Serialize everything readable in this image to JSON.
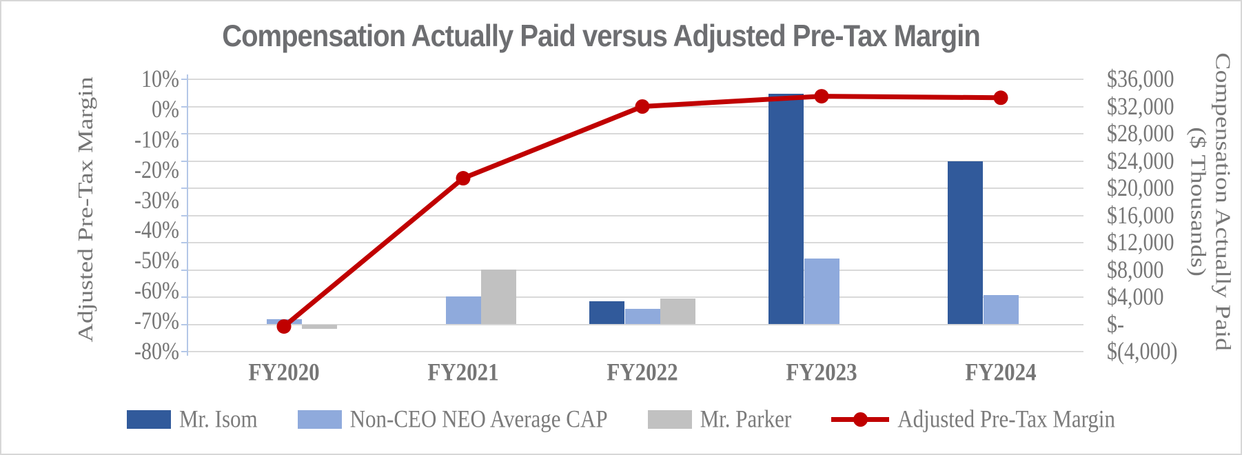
{
  "window": {
    "background_color": "#FFFFFF",
    "border_color": "#D7D7D7"
  },
  "chart_data": {
    "type": "combo-bar-line",
    "title": "Compensation Actually Paid versus Adjusted Pre-Tax Margin",
    "categories": [
      "FY2020",
      "FY2021",
      "FY2022",
      "FY2023",
      "FY2024"
    ],
    "bar_series": [
      {
        "name": "Mr. Isom",
        "color": "#315A9B",
        "axis": "right",
        "values_thousands": [
          null,
          null,
          3400,
          33900,
          23900
        ]
      },
      {
        "name": "Non-CEO NEO Average CAP",
        "color": "#8FAADC",
        "axis": "right",
        "values_thousands": [
          800,
          4100,
          2300,
          9700,
          4300
        ]
      },
      {
        "name": "Mr. Parker",
        "color": "#C1C1C1",
        "axis": "right",
        "values_thousands": [
          -700,
          8100,
          3800,
          null,
          null
        ]
      }
    ],
    "line_series": {
      "name": "Adjusted Pre-Tax Margin",
      "color": "#C00000",
      "axis": "left",
      "values_percent": [
        -71.7,
        -22.7,
        1.0,
        4.4,
        3.9
      ]
    },
    "left_axis": {
      "label": "Adjusted Pre-Tax Margin",
      "min": -80,
      "max": 10,
      "tick_step": 10,
      "tick_labels": [
        "10%",
        "0%",
        "-10%",
        "-20%",
        "-30%",
        "-40%",
        "-50%",
        "-60%",
        "-70%",
        "-80%"
      ]
    },
    "right_axis": {
      "label_line1": "Compensation Actually Paid",
      "label_line2": "($ Thousands)",
      "min": -4000,
      "max": 36000,
      "tick_step": 4000,
      "tick_labels": [
        "$36,000",
        "$32,000",
        "$28,000",
        "$24,000",
        "$20,000",
        "$16,000",
        "$12,000",
        "$8,000",
        "$4,000",
        "$-",
        "$(4,000)"
      ]
    },
    "legend": {
      "position": "bottom",
      "entries": [
        "Mr. Isom",
        "Non-CEO NEO Average CAP",
        "Mr. Parker",
        "Adjusted Pre-Tax Margin"
      ]
    },
    "grid": {
      "visible": true,
      "color": "#D9D9D9",
      "axis_line_color": "#B4C7E7"
    }
  }
}
